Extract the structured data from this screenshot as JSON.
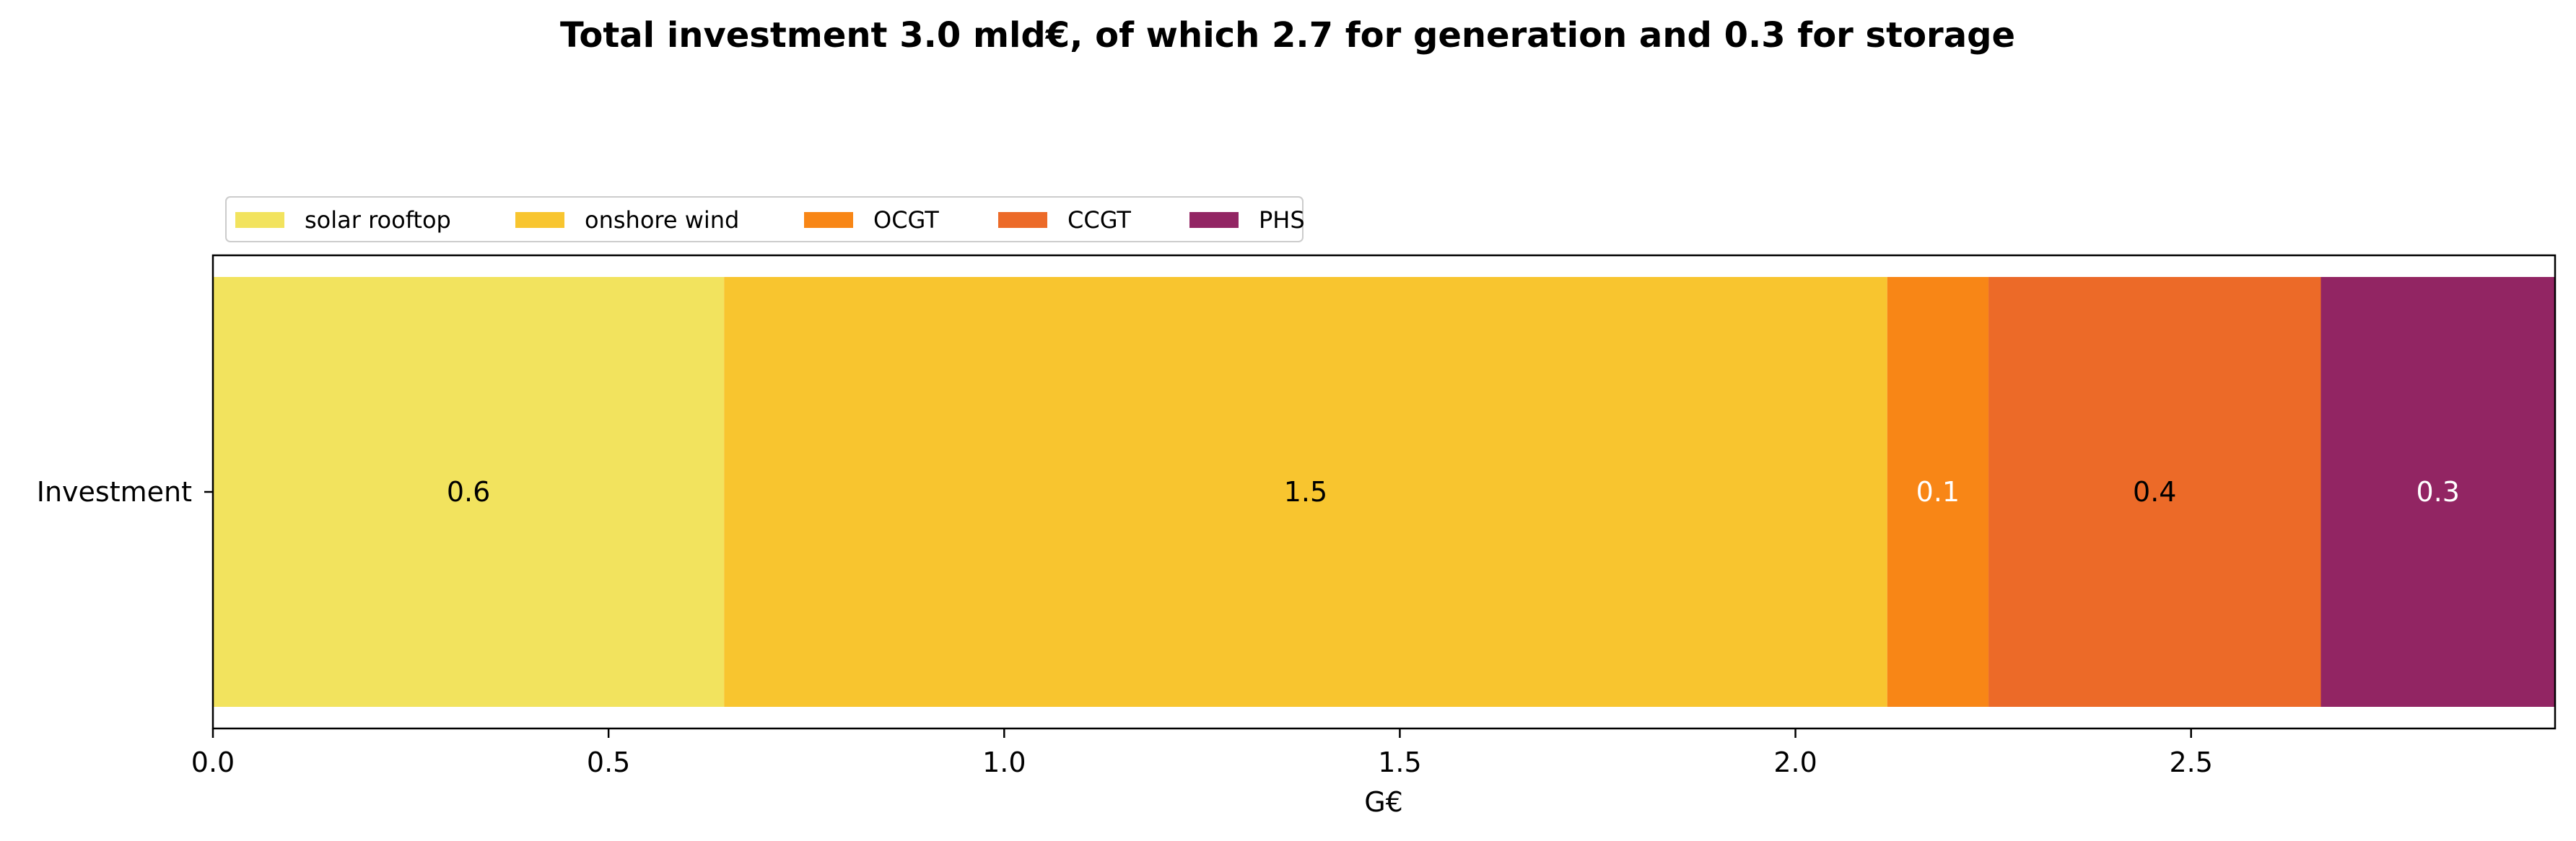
{
  "chart_data": {
    "type": "bar",
    "orientation": "horizontal-stacked",
    "title": "Total investment 3.0 mld€, of which 2.7 for generation and 0.3 for storage",
    "xlabel": "G€",
    "ylabel": "",
    "category": "Investment",
    "xlim": [
      0,
      2.96
    ],
    "xticks": [
      "0.0",
      "0.5",
      "1.0",
      "1.5",
      "2.0",
      "2.5"
    ],
    "legend_position": "top-left",
    "series": [
      {
        "name": "solar rooftop",
        "value": 0.646,
        "label": "0.6",
        "color": "#F2E35E",
        "label_color": "#000000"
      },
      {
        "name": "onshore wind",
        "value": 1.47,
        "label": "1.5",
        "color": "#F8C52F",
        "label_color": "#000000"
      },
      {
        "name": "OCGT",
        "value": 0.128,
        "label": "0.1",
        "color": "#F88616",
        "label_color": "#ffffff"
      },
      {
        "name": "CCGT",
        "value": 0.42,
        "label": "0.4",
        "color": "#EC6A28",
        "label_color": "#000000"
      },
      {
        "name": "PHS",
        "value": 0.296,
        "label": "0.3",
        "color": "#922563",
        "label_color": "#ffffff"
      }
    ]
  }
}
